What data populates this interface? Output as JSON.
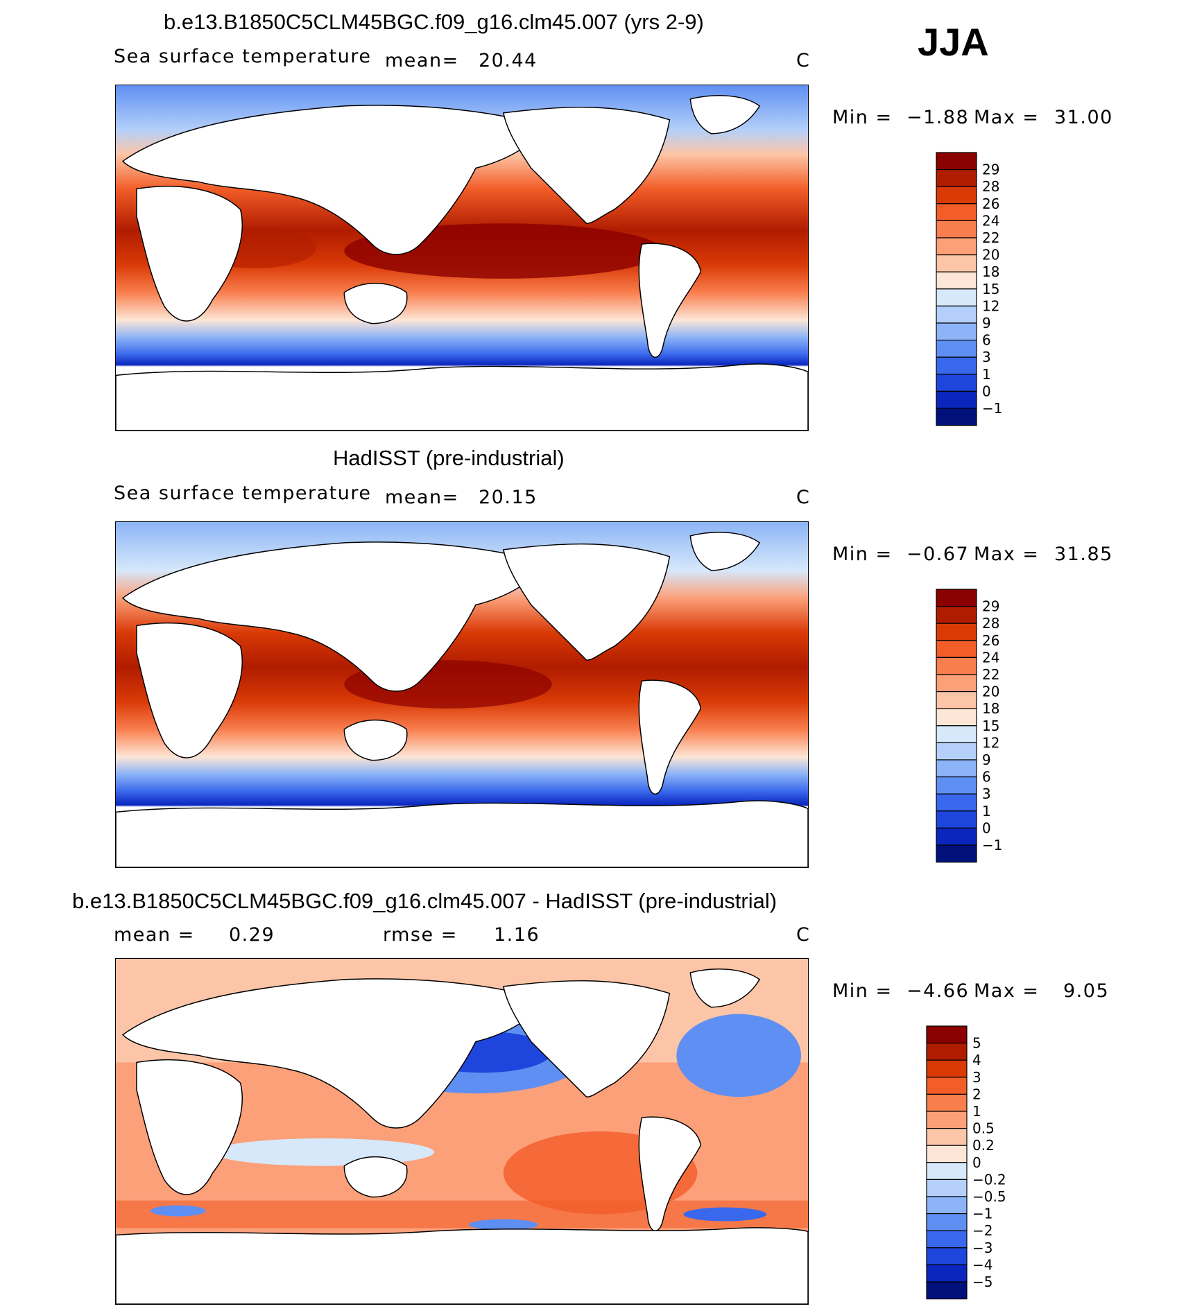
{
  "season": "JJA",
  "panels": [
    {
      "id": "model",
      "title": "b.e13.B1850C5CLM45BGC.f09_g16.clm45.007 (yrs 2-9)",
      "field": "Sea surface temperature",
      "mean_label": "mean=",
      "mean_value": "20.44",
      "units": "C",
      "min_label": "Min =",
      "min_value": "−1.88",
      "max_label": "Max =",
      "max_value": "31.00"
    },
    {
      "id": "obs",
      "title": "HadISST (pre-industrial)",
      "field": "Sea surface temperature",
      "mean_label": "mean=",
      "mean_value": "20.15",
      "units": "C",
      "min_label": "Min =",
      "min_value": "−0.67",
      "max_label": "Max =",
      "max_value": "31.85"
    },
    {
      "id": "diff",
      "title": "b.e13.B1850C5CLM45BGC.f09_g16.clm45.007 - HadISST (pre-industrial)",
      "mean_label": "mean =",
      "mean_value": "0.29",
      "rmse_label": "rmse =",
      "rmse_value": "1.16",
      "units": "C",
      "min_label": "Min =",
      "min_value": "−4.66",
      "max_label": "Max =",
      "max_value": "9.05"
    }
  ],
  "chart_data": [
    {
      "type": "heatmap",
      "title": "b.e13.B1850C5CLM45BGC.f09_g16.clm45.007 (yrs 2-9)",
      "variable": "Sea surface temperature",
      "units": "C",
      "mean": 20.44,
      "min": -1.88,
      "max": 31.0,
      "colorbar_levels": [
        "29",
        "28",
        "26",
        "24",
        "22",
        "20",
        "18",
        "15",
        "12",
        "9",
        "6",
        "3",
        "1",
        "0",
        "−1"
      ],
      "colorbar_colors": [
        "#8b0000",
        "#b01c00",
        "#d93a06",
        "#f25d28",
        "#f97e4e",
        "#fca07a",
        "#fdc5a7",
        "#fde6d6",
        "#d6e8fa",
        "#b4d0fa",
        "#8cb4f7",
        "#5f8ff2",
        "#3a68ec",
        "#1f46dc",
        "#0a26bd",
        "#00117c"
      ]
    },
    {
      "type": "heatmap",
      "title": "HadISST (pre-industrial)",
      "variable": "Sea surface temperature",
      "units": "C",
      "mean": 20.15,
      "min": -0.67,
      "max": 31.85,
      "colorbar_levels": [
        "29",
        "28",
        "26",
        "24",
        "22",
        "20",
        "18",
        "15",
        "12",
        "9",
        "6",
        "3",
        "1",
        "0",
        "−1"
      ],
      "colorbar_colors": [
        "#8b0000",
        "#b01c00",
        "#d93a06",
        "#f25d28",
        "#f97e4e",
        "#fca07a",
        "#fdc5a7",
        "#fde6d6",
        "#d6e8fa",
        "#b4d0fa",
        "#8cb4f7",
        "#5f8ff2",
        "#3a68ec",
        "#1f46dc",
        "#0a26bd",
        "#00117c"
      ]
    },
    {
      "type": "heatmap",
      "title": "b.e13.B1850C5CLM45BGC.f09_g16.clm45.007 - HadISST (pre-industrial)",
      "units": "C",
      "mean": 0.29,
      "rmse": 1.16,
      "min": -4.66,
      "max": 9.05,
      "colorbar_levels": [
        "5",
        "4",
        "3",
        "2",
        "1",
        "0.5",
        "0.2",
        "0",
        "−0.2",
        "−0.5",
        "−1",
        "−2",
        "−3",
        "−4",
        "−5"
      ],
      "colorbar_colors": [
        "#8b0000",
        "#b01c00",
        "#d93a06",
        "#f25d28",
        "#f97e4e",
        "#fca07a",
        "#fdc5a7",
        "#fde6d6",
        "#d6e8fa",
        "#b4d0fa",
        "#8cb4f7",
        "#5f8ff2",
        "#3a68ec",
        "#1f46dc",
        "#0a26bd",
        "#00117c"
      ]
    }
  ]
}
